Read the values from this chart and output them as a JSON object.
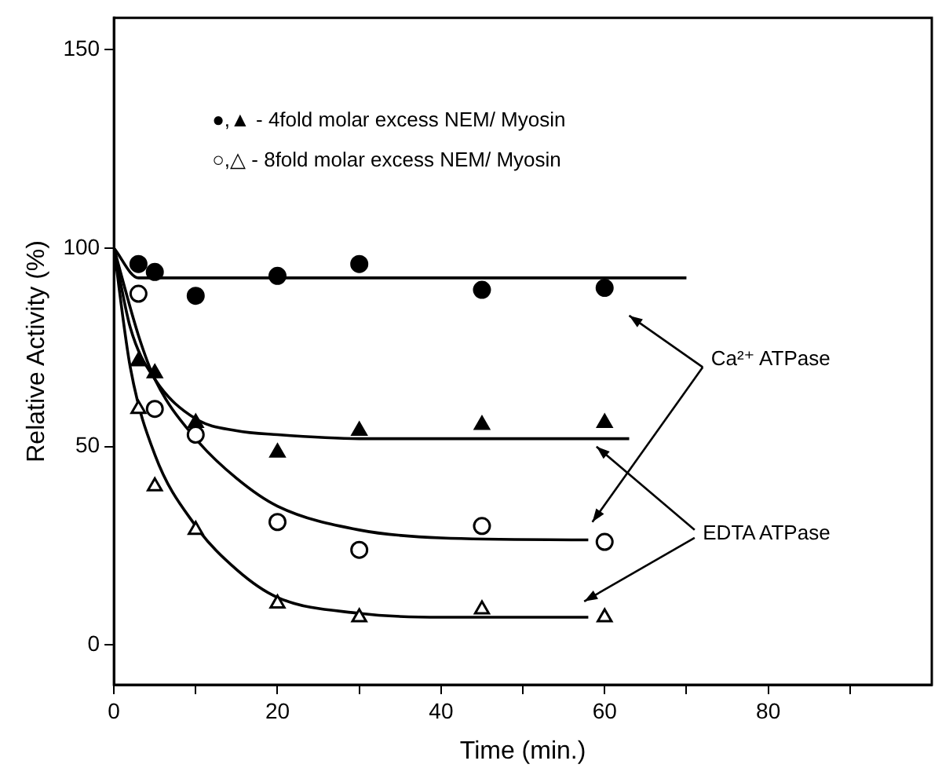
{
  "chart_data": {
    "type": "scatter",
    "xlabel": "Time (min.)",
    "ylabel": "Relative Activity (%)",
    "xlim": [
      0,
      100
    ],
    "ylim": [
      -10,
      158
    ],
    "xticks": [
      0,
      {
        "value": 10,
        "label": null
      },
      20,
      {
        "value": 30,
        "label": null
      },
      40,
      {
        "value": 50,
        "label": null
      },
      60,
      {
        "value": 70,
        "label": null
      },
      80,
      {
        "value": 90,
        "label": null
      }
    ],
    "yticks": [
      0,
      50,
      100,
      150
    ],
    "grid": false,
    "legend": false,
    "annotations": [
      "●,▲ - 4fold molar excess NEM/ Myosin",
      "○,△ - 8fold molar excess NEM/ Myosin",
      "Ca²⁺ ATPase",
      "EDTA ATPase"
    ],
    "series": [
      {
        "marker": "circle",
        "color": "#000000",
        "x": [
          3,
          5,
          10,
          20,
          30,
          45,
          60
        ],
        "values": [
          96,
          94,
          88,
          93,
          96,
          89.5,
          90
        ]
      },
      {
        "marker": "circle",
        "color": "#000000",
        "x": [
          3,
          5,
          10,
          20,
          30,
          45,
          60
        ],
        "values": [
          88.5,
          59.5,
          53,
          31,
          24,
          30,
          26
        ]
      },
      {
        "marker": "triangle",
        "color": "#000000",
        "x": [
          3,
          5,
          10,
          20,
          30,
          45,
          60
        ],
        "values": [
          71.5,
          68.5,
          56,
          48.5,
          54,
          55.5,
          56
        ]
      },
      {
        "marker": "triangle",
        "color": "#000000",
        "x": [
          3,
          5,
          10,
          20,
          30,
          45,
          60
        ],
        "values": [
          59.5,
          40,
          29,
          10.5,
          7,
          9,
          7
        ]
      },
      {
        "type": "line",
        "marker": "none",
        "color": "#000000",
        "x": [
          0,
          3,
          70
        ],
        "values": [
          100,
          92.5,
          92.5
        ]
      },
      {
        "type": "line",
        "marker": "none",
        "color": "#000000",
        "x": [
          0,
          2,
          5,
          10,
          15,
          20,
          30,
          40,
          63
        ],
        "values": [
          100,
          80,
          67,
          57,
          54,
          53,
          52,
          52,
          52
        ]
      },
      {
        "type": "line",
        "marker": "none",
        "color": "#000000",
        "x": [
          0,
          3,
          5,
          10,
          15,
          20,
          30,
          40,
          58
        ],
        "values": [
          100,
          78,
          67,
          52,
          42,
          35,
          29,
          27,
          26.5
        ]
      },
      {
        "type": "line",
        "marker": "none",
        "color": "#000000",
        "x": [
          0,
          2,
          5,
          10,
          15,
          20,
          30,
          40,
          58
        ],
        "values": [
          100,
          70,
          48,
          30,
          19,
          12,
          8,
          7,
          7
        ]
      }
    ]
  }
}
